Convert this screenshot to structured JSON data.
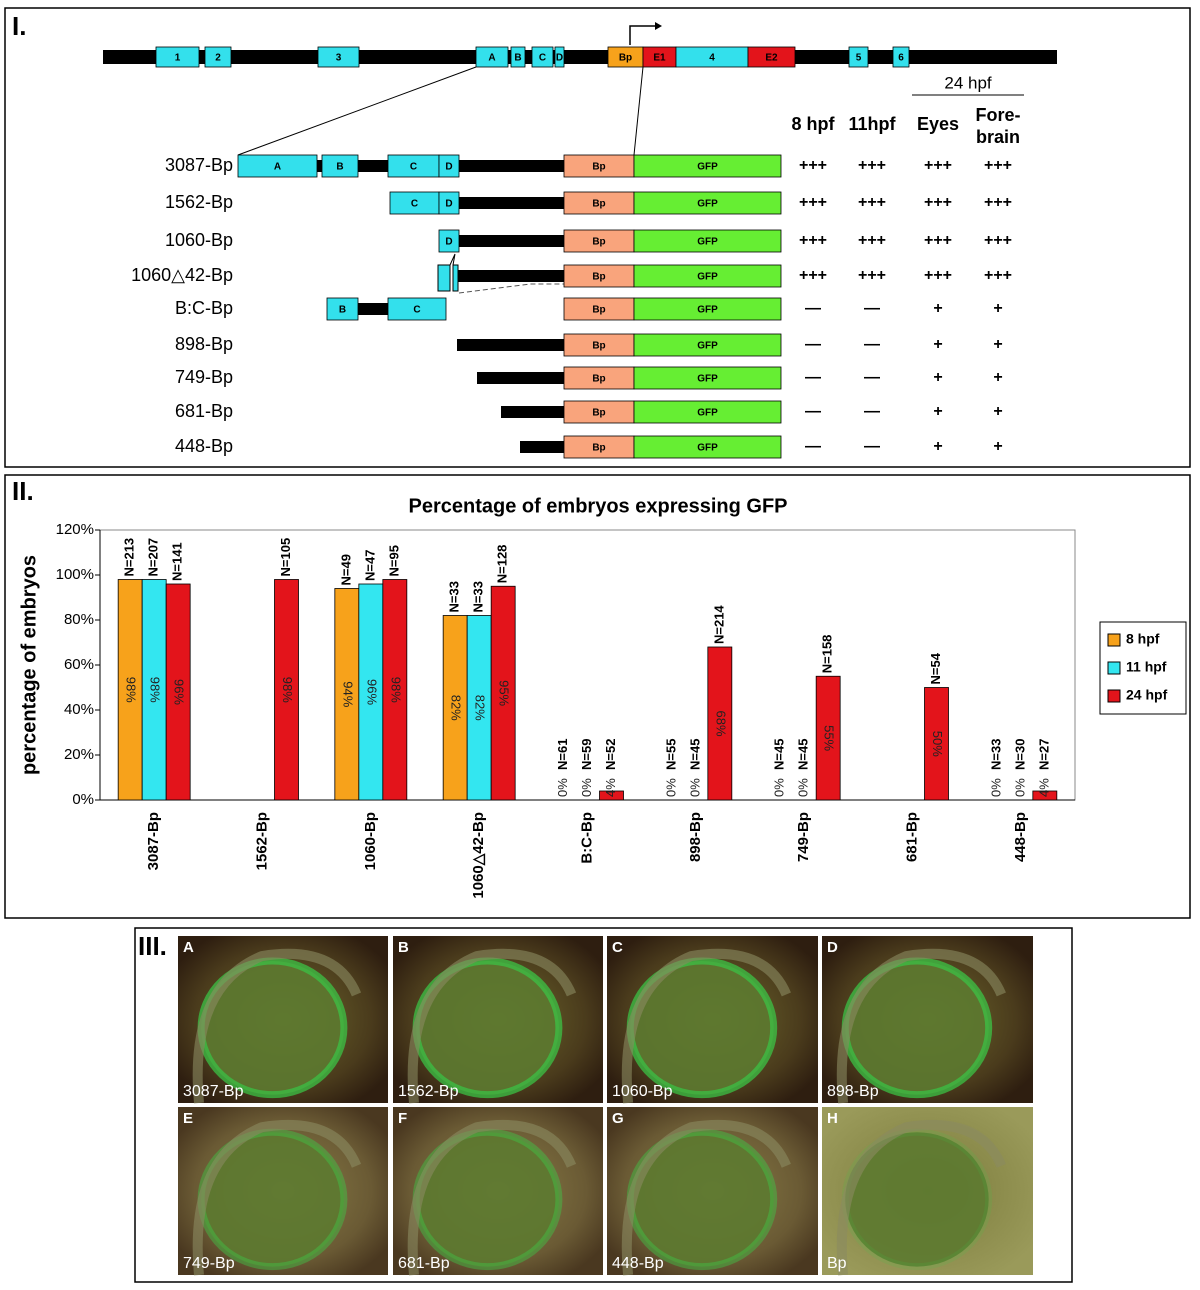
{
  "panel_labels": [
    "I.",
    "II.",
    "III."
  ],
  "gene_diagram": {
    "exons": [
      "1",
      "2",
      "3",
      "A",
      "B",
      "C",
      "D",
      "Bp",
      "E1",
      "4",
      "E2",
      "5",
      "6"
    ],
    "stage_header": "24 hpf",
    "columns": [
      "8 hpf",
      "11hpf",
      "Eyes",
      "Fore-brain"
    ],
    "constructs": [
      {
        "name": "3087-Bp",
        "elements": [
          "A",
          "B",
          "C",
          "D",
          "Bp",
          "GFP"
        ],
        "results": [
          "+++",
          "+++",
          "+++",
          "+++"
        ]
      },
      {
        "name": "1562-Bp",
        "elements": [
          "C",
          "D",
          "Bp",
          "GFP"
        ],
        "results": [
          "+++",
          "+++",
          "+++",
          "+++"
        ]
      },
      {
        "name": "1060-Bp",
        "elements": [
          "D",
          "Bp",
          "GFP"
        ],
        "results": [
          "+++",
          "+++",
          "+++",
          "+++"
        ]
      },
      {
        "name": "1060△42-Bp",
        "elements": [
          "Bp",
          "GFP"
        ],
        "results": [
          "+++",
          "+++",
          "+++",
          "+++"
        ]
      },
      {
        "name": "B:C-Bp",
        "elements": [
          "B",
          "C",
          "Bp",
          "GFP"
        ],
        "results": [
          "—",
          "—",
          "+",
          "+"
        ]
      },
      {
        "name": "898-Bp",
        "elements": [
          "Bp",
          "GFP"
        ],
        "results": [
          "—",
          "—",
          "+",
          "+"
        ]
      },
      {
        "name": "749-Bp",
        "elements": [
          "Bp",
          "GFP"
        ],
        "results": [
          "—",
          "—",
          "+",
          "+"
        ]
      },
      {
        "name": "681-Bp",
        "elements": [
          "Bp",
          "GFP"
        ],
        "results": [
          "—",
          "—",
          "+",
          "+"
        ]
      },
      {
        "name": "448-Bp",
        "elements": [
          "Bp",
          "GFP"
        ],
        "results": [
          "—",
          "—",
          "+",
          "+"
        ]
      }
    ]
  },
  "chart_data": {
    "type": "bar",
    "title": "Percentage of embryos expressing GFP",
    "y_label": "percentage of embryos",
    "categories": [
      "3087-Bp",
      "1562-Bp",
      "1060-Bp",
      "1060△42-Bp",
      "B:C-Bp",
      "898-Bp",
      "749-Bp",
      "681-Bp",
      "448-Bp"
    ],
    "series": [
      {
        "name": "8 hpf",
        "color": "#f7a21b",
        "values": [
          98,
          null,
          94,
          82,
          0,
          0,
          0,
          null,
          0
        ],
        "value_labels": [
          "98%",
          null,
          "94%",
          "82%",
          "0%",
          "0%",
          "0%",
          null,
          "0%"
        ],
        "n_labels": [
          "N=213",
          null,
          "N=49",
          "N=33",
          "N=61",
          "N=55",
          "N=45",
          null,
          "N=33"
        ]
      },
      {
        "name": "11 hpf",
        "color": "#33e6f0",
        "values": [
          98,
          null,
          96,
          82,
          0,
          0,
          0,
          null,
          0
        ],
        "value_labels": [
          "98%",
          null,
          "96%",
          "82%",
          "0%",
          "0%",
          "0%",
          null,
          "0%"
        ],
        "n_labels": [
          "N=207",
          null,
          "N=47",
          "N=33",
          "N=59",
          "N=45",
          "N=45",
          null,
          "N=30"
        ]
      },
      {
        "name": "24 hpf",
        "color": "#e3141b",
        "values": [
          96,
          98,
          98,
          95,
          4,
          68,
          55,
          50,
          4
        ],
        "value_labels": [
          "96%",
          "98%",
          "98%",
          "95%",
          "4%",
          "68%",
          "55%",
          "50%",
          "4%"
        ],
        "n_labels": [
          "N=141",
          "N=105",
          "N=95",
          "N=128",
          "N=52",
          "N=214",
          "N=158",
          "N=54",
          "N=27"
        ]
      }
    ],
    "ylim": [
      0,
      120
    ],
    "yticks": [
      {
        "value": 0,
        "label": "0%"
      },
      {
        "value": 20,
        "label": "20%"
      },
      {
        "value": 40,
        "label": "40%"
      },
      {
        "value": 60,
        "label": "60%"
      },
      {
        "value": 80,
        "label": "80%"
      },
      {
        "value": 100,
        "label": "100%"
      },
      {
        "value": 120,
        "label": "120%"
      }
    ],
    "legend": "right"
  },
  "images": [
    {
      "letter": "A",
      "name": "3087-Bp"
    },
    {
      "letter": "B",
      "name": "1562-Bp"
    },
    {
      "letter": "C",
      "name": "1060-Bp"
    },
    {
      "letter": "D",
      "name": "898-Bp"
    },
    {
      "letter": "E",
      "name": "749-Bp"
    },
    {
      "letter": "F",
      "name": "681-Bp"
    },
    {
      "letter": "G",
      "name": "448-Bp"
    },
    {
      "letter": "H",
      "name": "Bp"
    }
  ]
}
